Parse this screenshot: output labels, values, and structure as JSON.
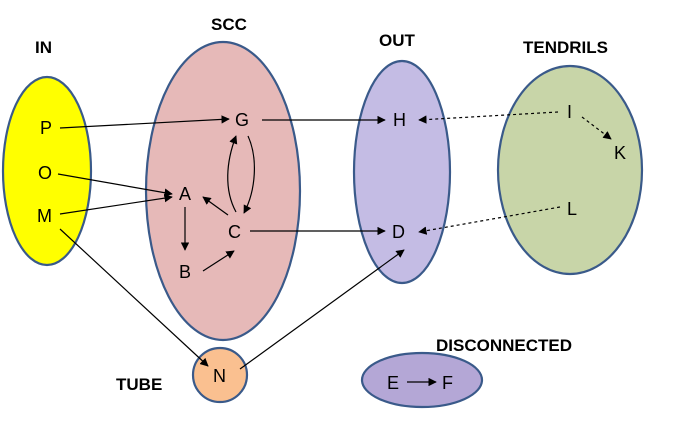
{
  "headings": {
    "in": "IN",
    "scc": "SCC",
    "out": "OUT",
    "tendrils": "TENDRILS",
    "tube": "TUBE",
    "disconnected": "DISCONNECTED"
  },
  "colors": {
    "in": "#ffff00",
    "scc": "#e6b9b8",
    "out": "#c4bce4",
    "tendrils": "#c8d5a8",
    "tube": "#fac090",
    "disconnected": "#b4a7d6",
    "border": "#3a5a8a"
  },
  "nodes": {
    "P": "P",
    "O": "O",
    "M": "M",
    "G": "G",
    "A": "A",
    "B": "B",
    "C": "C",
    "H": "H",
    "D": "D",
    "I": "I",
    "K": "K",
    "L": "L",
    "N": "N",
    "E": "E",
    "F": "F"
  },
  "edges": [
    {
      "from": "P",
      "to": "G",
      "style": "solid",
      "arrow": true
    },
    {
      "from": "O",
      "to": "A",
      "style": "solid",
      "arrow": true
    },
    {
      "from": "M",
      "to": "A",
      "style": "solid",
      "arrow": true
    },
    {
      "from": "G",
      "to": "H",
      "style": "solid",
      "arrow": true
    },
    {
      "from": "G",
      "to": "C",
      "style": "solid",
      "arrow": true
    },
    {
      "from": "C",
      "to": "G",
      "style": "solid",
      "arrow": true
    },
    {
      "from": "C",
      "to": "A",
      "style": "solid",
      "arrow": true
    },
    {
      "from": "A",
      "to": "B",
      "style": "solid",
      "arrow": true
    },
    {
      "from": "B",
      "to": "C",
      "style": "solid",
      "arrow": true
    },
    {
      "from": "C",
      "to": "D",
      "style": "solid",
      "arrow": true
    },
    {
      "from": "I",
      "to": "H",
      "style": "dashed",
      "arrow": true
    },
    {
      "from": "I",
      "to": "K",
      "style": "dashed",
      "arrow": true
    },
    {
      "from": "L",
      "to": "D",
      "style": "dashed",
      "arrow": true
    },
    {
      "from": "M",
      "to": "N",
      "style": "solid",
      "arrow": true
    },
    {
      "from": "N",
      "to": "D",
      "style": "solid",
      "arrow": true
    },
    {
      "from": "E",
      "to": "F",
      "style": "solid",
      "arrow": true
    }
  ]
}
